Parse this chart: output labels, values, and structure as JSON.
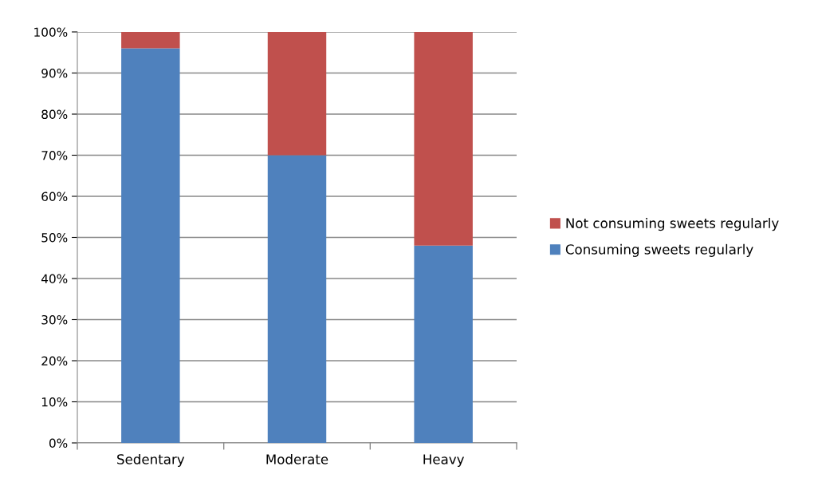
{
  "chart_data": {
    "type": "bar",
    "stacked": true,
    "categories": [
      "Sedentary",
      "Moderate",
      "Heavy"
    ],
    "series": [
      {
        "name": "Consuming sweets regularly",
        "color": "#4f81bd",
        "values": [
          96,
          70,
          48
        ]
      },
      {
        "name": "Not consuming sweets regularly",
        "color": "#c0504d",
        "values": [
          4,
          30,
          52
        ]
      }
    ],
    "ylim": [
      0,
      100
    ],
    "yticks": [
      {
        "value": 0,
        "label": "0%"
      },
      {
        "value": 10,
        "label": "10%"
      },
      {
        "value": 20,
        "label": "20%"
      },
      {
        "value": 30,
        "label": "30%"
      },
      {
        "value": 40,
        "label": "40%"
      },
      {
        "value": 50,
        "label": "50%"
      },
      {
        "value": 60,
        "label": "60%"
      },
      {
        "value": 70,
        "label": "70%"
      },
      {
        "value": 80,
        "label": "80%"
      },
      {
        "value": 90,
        "label": "90%"
      },
      {
        "value": 100,
        "label": "100%"
      }
    ],
    "grid": "y",
    "legend": "right"
  }
}
